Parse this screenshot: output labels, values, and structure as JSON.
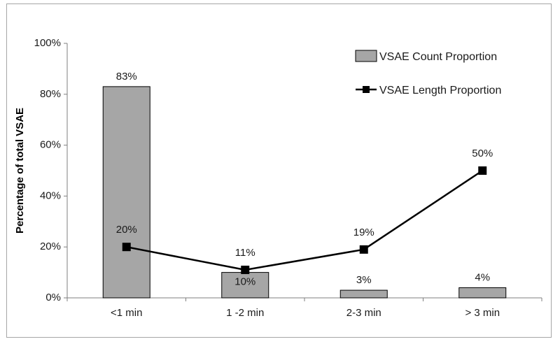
{
  "chart_data": {
    "type": "bar",
    "categories": [
      "<1 min",
      "1 -2 min",
      "2-3 min",
      "> 3 min"
    ],
    "ylabel": "Percentage of total VSAE",
    "ylim": [
      0,
      100
    ],
    "yticks": [
      "0%",
      "20%",
      "40%",
      "60%",
      "80%",
      "100%"
    ],
    "grid": false,
    "legend_position": "top-right",
    "series": [
      {
        "name": "VSAE Count Proportion",
        "type": "bar",
        "values": [
          83,
          10,
          3,
          4
        ],
        "labels": [
          "83%",
          "10%",
          "3%",
          "4%"
        ],
        "color": "#a6a6a6"
      },
      {
        "name": "VSAE Length Proportion",
        "type": "line",
        "values": [
          20,
          11,
          19,
          50
        ],
        "labels": [
          "20%",
          "11%",
          "19%",
          "50%"
        ],
        "color": "#000000"
      }
    ]
  }
}
